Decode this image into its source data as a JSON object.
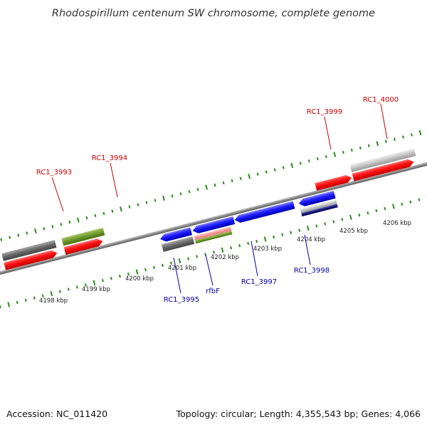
{
  "title": "Rhodospirillum centenum SW chromosome, complete genome",
  "footer": {
    "accession": "Accession: NC_011420",
    "summary": "Topology: circular; Length: 4,355,543 bp; Genes: 4,066"
  },
  "colors": {
    "forward_label": "#cc0000",
    "reverse_label": "#0000aa",
    "tick": "#2a8a1a",
    "axis": "#888888"
  },
  "scale_ticks": [
    {
      "label": "4198 kbp"
    },
    {
      "label": "4199 kbp"
    },
    {
      "label": "4200 kbp"
    },
    {
      "label": "4201 kbp"
    },
    {
      "label": "4202 kbp"
    },
    {
      "label": "4203 kbp"
    },
    {
      "label": "4204 kbp"
    },
    {
      "label": "4205 kbp"
    },
    {
      "label": "4206 kbp"
    }
  ],
  "gene_labels": [
    {
      "name": "rc1-3993-label",
      "text": "RC1_3993",
      "strand": "forward"
    },
    {
      "name": "rc1-3994-label",
      "text": "RC1_3994",
      "strand": "forward"
    },
    {
      "name": "rc1-3999-label",
      "text": "RC1_3999",
      "strand": "forward"
    },
    {
      "name": "rc1-4000-label",
      "text": "RC1_4000",
      "strand": "forward"
    },
    {
      "name": "rc1-3995-label",
      "text": "RC1_3995",
      "strand": "reverse"
    },
    {
      "name": "rfbf-label",
      "text": "rfbF",
      "strand": "reverse"
    },
    {
      "name": "rc1-3997-label",
      "text": "RC1_3997",
      "strand": "reverse"
    },
    {
      "name": "rc1-3998-label",
      "text": "RC1_3998",
      "strand": "reverse"
    }
  ]
}
